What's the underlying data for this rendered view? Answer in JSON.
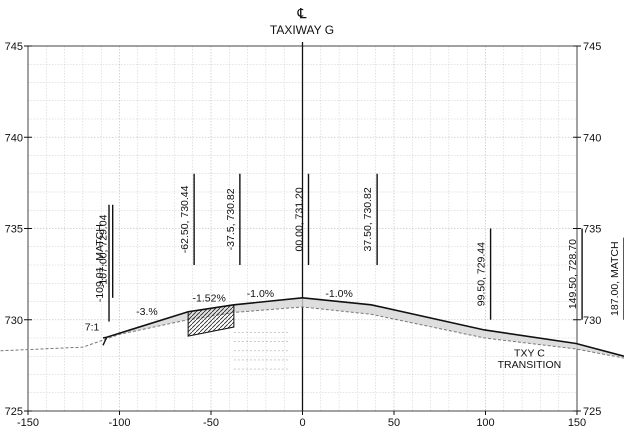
{
  "header": {
    "centerline_symbol": "℄",
    "title": "TAXIWAY G"
  },
  "chart_data": {
    "type": "cross-section",
    "xlim": [
      -150,
      150
    ],
    "ylim": [
      725,
      745
    ],
    "grid": true,
    "x_ticks": [
      {
        "v": -150,
        "label": "-150"
      },
      {
        "v": -100,
        "label": "-100"
      },
      {
        "v": -50,
        "label": "-50"
      },
      {
        "v": 0,
        "label": "0"
      },
      {
        "v": 50,
        "label": "50"
      },
      {
        "v": 100,
        "label": "100"
      },
      {
        "v": 150,
        "label": "150"
      }
    ],
    "y_ticks_left": [
      {
        "v": 745,
        "label": "745"
      },
      {
        "v": 740,
        "label": "740"
      },
      {
        "v": 735,
        "label": "735"
      },
      {
        "v": 730,
        "label": "730"
      },
      {
        "v": 725,
        "label": "725"
      }
    ],
    "y_ticks_right": [
      {
        "v": 745,
        "label": "745"
      },
      {
        "v": 740,
        "label": "740"
      },
      {
        "v": 735,
        "label": "735"
      },
      {
        "v": 730,
        "label": "730"
      },
      {
        "v": 725,
        "label": "725"
      }
    ],
    "finished_grade": [
      {
        "x": -109.01,
        "y": 729.0
      },
      {
        "x": -107.0,
        "y": 729.04
      },
      {
        "x": -62.5,
        "y": 730.44
      },
      {
        "x": -37.5,
        "y": 730.82
      },
      {
        "x": 0,
        "y": 731.2
      },
      {
        "x": 37.5,
        "y": 730.82
      },
      {
        "x": 99.5,
        "y": 729.44
      },
      {
        "x": 149.5,
        "y": 728.7
      },
      {
        "x": 187.0,
        "y": 728.0
      }
    ],
    "existing_ground": [
      {
        "x": -165,
        "y": 728.3
      },
      {
        "x": -120,
        "y": 728.5
      },
      {
        "x": -100,
        "y": 729.2
      },
      {
        "x": -62.5,
        "y": 730.0
      },
      {
        "x": -37.5,
        "y": 730.4
      },
      {
        "x": 0,
        "y": 730.7
      },
      {
        "x": 37.5,
        "y": 730.3
      },
      {
        "x": 99.5,
        "y": 729.0
      },
      {
        "x": 149.5,
        "y": 728.4
      },
      {
        "x": 187.0,
        "y": 727.9
      }
    ],
    "stations": [
      {
        "x": -109.01,
        "label": "-109.01, MATCH",
        "tick_top": 736.3,
        "tick_bottom": 729.9
      },
      {
        "x": -107.0,
        "label": "-107.00, 729.04",
        "tick_top": 736.3,
        "tick_bottom": 731.2
      },
      {
        "x": -62.5,
        "label": "-62.50, 730.44",
        "tick_top": 738.0,
        "tick_bottom": 733.0
      },
      {
        "x": -37.5,
        "label": "-37.5, 730.82",
        "tick_top": 738.0,
        "tick_bottom": 733.0
      },
      {
        "x": 0,
        "label": "00.00, 731.20",
        "tick_top": 738.0,
        "tick_bottom": 733.0
      },
      {
        "x": 37.5,
        "label": "37.50, 730.82",
        "tick_top": 738.0,
        "tick_bottom": 733.0
      },
      {
        "x": 99.5,
        "label": "99.50, 729.44",
        "tick_top": 735.0,
        "tick_bottom": 730.0
      },
      {
        "x": 149.5,
        "label": "149.50, 728.70",
        "tick_top": 735.0,
        "tick_bottom": 730.0
      },
      {
        "x": 187.0,
        "label": "187.00, MATCH",
        "tick_top": 734.5,
        "tick_bottom": 730.0
      }
    ],
    "annotations": [
      {
        "name": "slope-7-1",
        "text": "7:1",
        "x": -115,
        "y": 729.4
      },
      {
        "name": "slope-minus-3pct",
        "text": "-3.%",
        "x": -85,
        "y": 730.25
      },
      {
        "name": "slope-minus-1-52pct",
        "text": "-1.52%",
        "x": -51,
        "y": 731.0
      },
      {
        "name": "slope-minus-1pct-left",
        "text": "-1.0%",
        "x": -23,
        "y": 731.25
      },
      {
        "name": "slope-minus-1pct-right",
        "text": "-1.0%",
        "x": 20,
        "y": 731.25
      },
      {
        "name": "txy-c-label",
        "text": "TXY C",
        "x": 124,
        "y": 728.0
      },
      {
        "name": "transition-label",
        "text": "TRANSITION",
        "x": 124,
        "y": 727.35
      }
    ]
  }
}
